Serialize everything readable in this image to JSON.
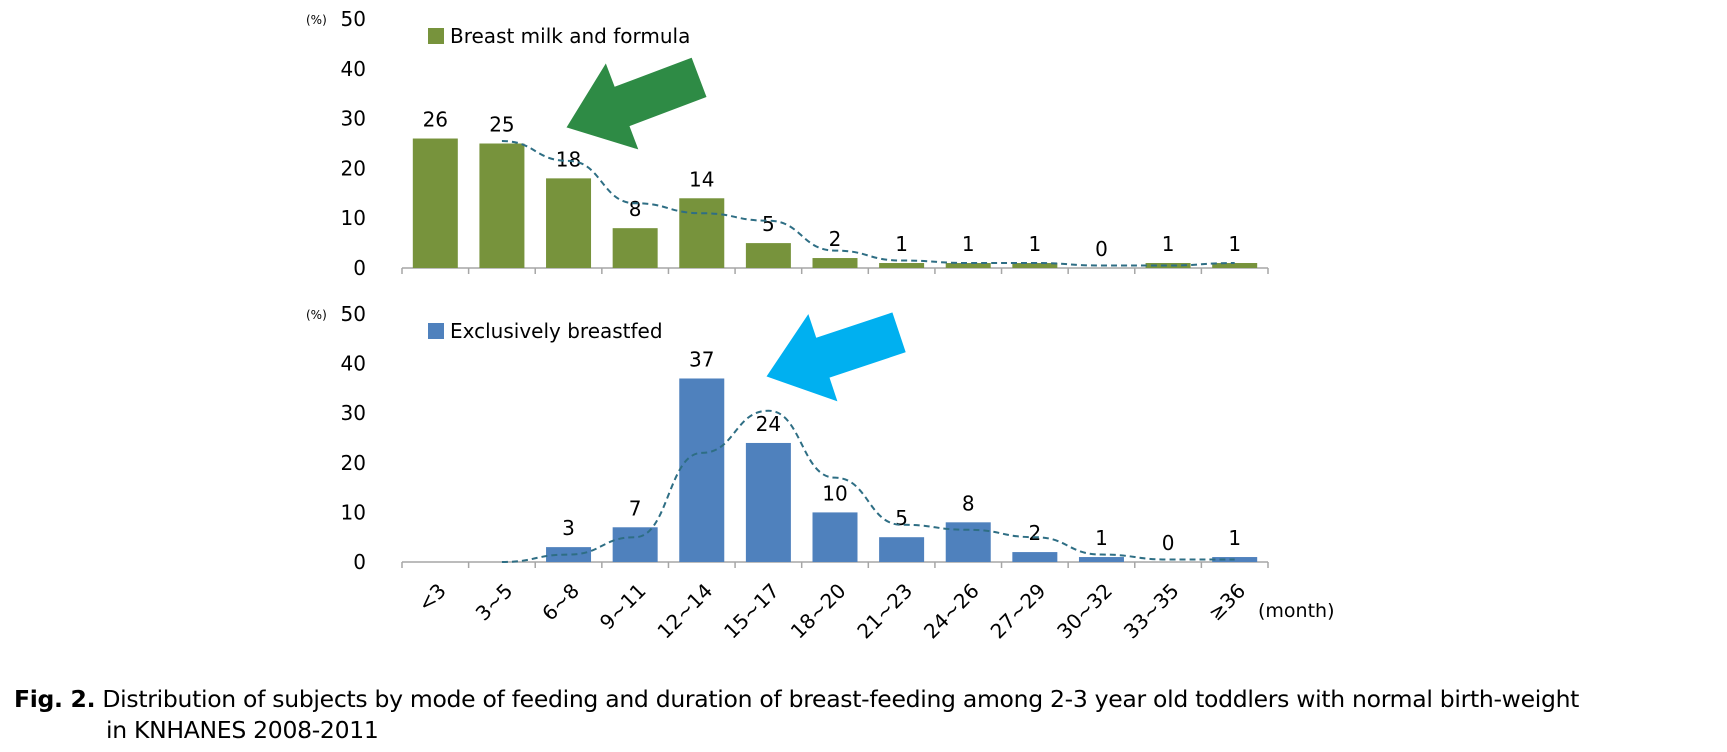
{
  "chart_data": [
    {
      "type": "bar",
      "series": [
        {
          "name": "Breast milk and formula",
          "values": [
            26,
            25,
            18,
            8,
            14,
            5,
            2,
            1,
            1,
            1,
            0,
            1,
            1
          ],
          "color": "#77933C"
        }
      ],
      "categories": [
        "<3",
        "3~5",
        "6~8",
        "9~11",
        "12~14",
        "15~17",
        "18~20",
        "21~23",
        "24~26",
        "27~29",
        "30~32",
        "33~35",
        "≥36"
      ],
      "data_labels": [
        "26",
        "25",
        "18",
        "8",
        "14",
        "5",
        "2",
        "1",
        "1",
        "1",
        "0",
        "1",
        "1"
      ],
      "trendline": {
        "style": "dashed",
        "color": "#2E6E84"
      },
      "ylim": [
        0,
        50
      ],
      "yticks": [
        "0",
        "10",
        "20",
        "30",
        "40",
        "50"
      ],
      "yunit": "(%)",
      "arrow_color": "#2E8B45"
    },
    {
      "type": "bar",
      "series": [
        {
          "name": "Exclusively breastfed",
          "values": [
            0,
            0,
            3,
            7,
            37,
            24,
            10,
            5,
            8,
            2,
            1,
            0,
            1
          ],
          "color": "#4F81BD"
        }
      ],
      "categories": [
        "<3",
        "3~5",
        "6~8",
        "9~11",
        "12~14",
        "15~17",
        "18~20",
        "21~23",
        "24~26",
        "27~29",
        "30~32",
        "33~35",
        "≥36"
      ],
      "data_labels": [
        null,
        null,
        "3",
        "7",
        "37",
        "24",
        "10",
        "5",
        "8",
        "2",
        "1",
        "0",
        "1"
      ],
      "trendline": {
        "style": "dashed",
        "color": "#2E6E84"
      },
      "ylim": [
        0,
        50
      ],
      "yticks": [
        "0",
        "10",
        "20",
        "30",
        "40",
        "50"
      ],
      "yunit": "(%)",
      "xunit": "(month)",
      "arrow_color": "#00B0F0"
    }
  ],
  "caption": {
    "label": "Fig. 2.",
    "line1": " Distribution of subjects by mode of feeding and duration of breast-feeding among 2-3 year old toddlers with normal birth-weight",
    "line2": "in KNHANES 2008-2011"
  }
}
